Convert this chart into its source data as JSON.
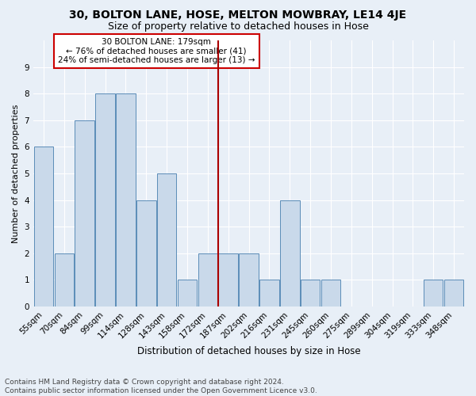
{
  "title": "30, BOLTON LANE, HOSE, MELTON MOWBRAY, LE14 4JE",
  "subtitle": "Size of property relative to detached houses in Hose",
  "xlabel": "Distribution of detached houses by size in Hose",
  "ylabel": "Number of detached properties",
  "categories": [
    "55sqm",
    "70sqm",
    "84sqm",
    "99sqm",
    "114sqm",
    "128sqm",
    "143sqm",
    "158sqm",
    "172sqm",
    "187sqm",
    "202sqm",
    "216sqm",
    "231sqm",
    "245sqm",
    "260sqm",
    "275sqm",
    "289sqm",
    "304sqm",
    "319sqm",
    "333sqm",
    "348sqm"
  ],
  "values": [
    6,
    2,
    7,
    8,
    8,
    4,
    5,
    1,
    2,
    2,
    2,
    1,
    4,
    1,
    1,
    0,
    0,
    0,
    0,
    1,
    1
  ],
  "bar_color": "#c9d9ea",
  "bar_edge_color": "#5b8db8",
  "vline_x_idx": 8,
  "vline_color": "#aa0000",
  "annotation_text": "30 BOLTON LANE: 179sqm\n← 76% of detached houses are smaller (41)\n24% of semi-detached houses are larger (13) →",
  "annotation_box_color": "#ffffff",
  "annotation_box_edge": "#cc0000",
  "ylim": [
    0,
    10
  ],
  "yticks": [
    0,
    1,
    2,
    3,
    4,
    5,
    6,
    7,
    8,
    9,
    10
  ],
  "footer_text": "Contains HM Land Registry data © Crown copyright and database right 2024.\nContains public sector information licensed under the Open Government Licence v3.0.",
  "bg_color": "#e8eff7",
  "grid_color": "#ffffff",
  "title_fontsize": 10,
  "subtitle_fontsize": 9,
  "xlabel_fontsize": 8.5,
  "ylabel_fontsize": 8,
  "tick_fontsize": 7.5,
  "footer_fontsize": 6.5,
  "annot_fontsize": 7.5
}
